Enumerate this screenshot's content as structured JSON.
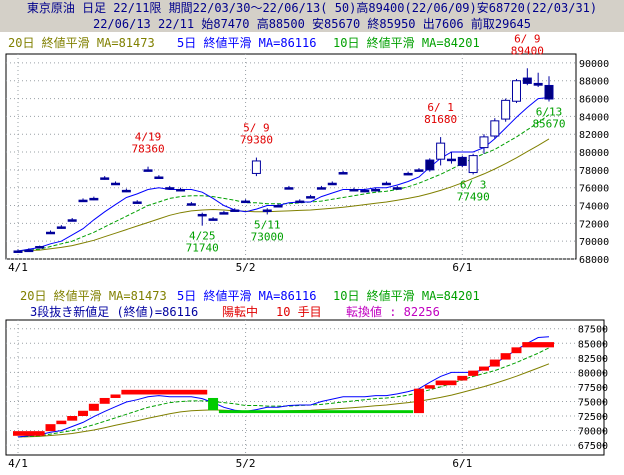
{
  "header": {
    "line1": "東京原油 日足 22/11限 期間22/03/30～22/06/13( 50)高89400(22/06/09)安68720(22/03/31)",
    "line2": "22/06/13 22/11 始87470 高88500 安85670 終85950 出7606 前取29645"
  },
  "legend": {
    "ma20": "20日 終値平滑 MA=81473",
    "ma5": "5日 終値平滑 MA=86116",
    "ma10": "10日 終値平滑 MA=84201"
  },
  "lower": {
    "line2_text": "3段抜き新値足 (終値)=86116",
    "state": "陽転中",
    "step": "10 手目",
    "turn": "転換値 : 82256"
  },
  "colors": {
    "bg": "#ffffff",
    "grid": "#9aa0a6",
    "up_candle": "#0000a0",
    "down_candle": "#000080",
    "ma20": "#808000",
    "ma5": "#0000ff",
    "ma10": "#00a000",
    "high_label": "#e00000",
    "low_label": "#00a000",
    "brick_up": "#ff0000",
    "brick_down": "#00cc00"
  },
  "chart_data": [
    {
      "type": "candlestick",
      "x_labels": [
        "4/1",
        "5/2",
        "6/1"
      ],
      "ylim": [
        68000,
        91000
      ],
      "y_ticks": [
        68000,
        70000,
        72000,
        74000,
        76000,
        78000,
        80000,
        82000,
        84000,
        86000,
        88000,
        90000
      ],
      "candles": [
        {
          "o": 68900,
          "h": 69100,
          "l": 68720,
          "c": 68900
        },
        {
          "o": 69000,
          "h": 69200,
          "l": 68800,
          "c": 69000
        },
        {
          "o": 69400,
          "h": 69500,
          "l": 69200,
          "c": 69400
        },
        {
          "o": 71000,
          "h": 71200,
          "l": 70800,
          "c": 71000
        },
        {
          "o": 71600,
          "h": 71800,
          "l": 71400,
          "c": 71600
        },
        {
          "o": 72400,
          "h": 72600,
          "l": 72200,
          "c": 72400
        },
        {
          "o": 74600,
          "h": 74800,
          "l": 74400,
          "c": 74600
        },
        {
          "o": 74800,
          "h": 75000,
          "l": 74600,
          "c": 74800
        },
        {
          "o": 77100,
          "h": 77300,
          "l": 76900,
          "c": 77100
        },
        {
          "o": 76500,
          "h": 76700,
          "l": 76300,
          "c": 76500
        },
        {
          "o": 75700,
          "h": 75900,
          "l": 75500,
          "c": 75700
        },
        {
          "o": 74400,
          "h": 74600,
          "l": 74200,
          "c": 74400
        },
        {
          "o": 78000,
          "h": 78360,
          "l": 77800,
          "c": 78000
        },
        {
          "o": 77200,
          "h": 77400,
          "l": 77000,
          "c": 77200
        },
        {
          "o": 76000,
          "h": 76200,
          "l": 75800,
          "c": 76000
        },
        {
          "o": 75800,
          "h": 76000,
          "l": 75600,
          "c": 75800
        },
        {
          "o": 74200,
          "h": 74400,
          "l": 74000,
          "c": 74200
        },
        {
          "o": 73000,
          "h": 73200,
          "l": 71740,
          "c": 73000
        },
        {
          "o": 72500,
          "h": 72700,
          "l": 72300,
          "c": 72500
        },
        {
          "o": 73200,
          "h": 73400,
          "l": 73000,
          "c": 73200
        },
        {
          "o": 73500,
          "h": 73700,
          "l": 73300,
          "c": 73500
        },
        {
          "o": 74500,
          "h": 74700,
          "l": 74300,
          "c": 74500
        },
        {
          "o": 77600,
          "h": 79380,
          "l": 77300,
          "c": 79000
        },
        {
          "o": 73500,
          "h": 73700,
          "l": 73000,
          "c": 73500
        },
        {
          "o": 74000,
          "h": 74200,
          "l": 73800,
          "c": 74000
        },
        {
          "o": 76000,
          "h": 76200,
          "l": 75800,
          "c": 76000
        },
        {
          "o": 74500,
          "h": 74700,
          "l": 74300,
          "c": 74500
        },
        {
          "o": 75000,
          "h": 75200,
          "l": 74800,
          "c": 75000
        },
        {
          "o": 76000,
          "h": 76200,
          "l": 75800,
          "c": 76000
        },
        {
          "o": 76500,
          "h": 76700,
          "l": 76300,
          "c": 76500
        },
        {
          "o": 77700,
          "h": 77900,
          "l": 77500,
          "c": 77700
        },
        {
          "o": 75800,
          "h": 76000,
          "l": 75600,
          "c": 75800
        },
        {
          "o": 75700,
          "h": 75900,
          "l": 75500,
          "c": 75700
        },
        {
          "o": 75800,
          "h": 76000,
          "l": 75600,
          "c": 75800
        },
        {
          "o": 76500,
          "h": 76700,
          "l": 76300,
          "c": 76500
        },
        {
          "o": 76000,
          "h": 76200,
          "l": 75800,
          "c": 76000
        },
        {
          "o": 77600,
          "h": 77800,
          "l": 77400,
          "c": 77600
        },
        {
          "o": 78000,
          "h": 78200,
          "l": 77800,
          "c": 78000
        },
        {
          "o": 79100,
          "h": 79300,
          "l": 77800,
          "c": 78000
        },
        {
          "o": 79200,
          "h": 81680,
          "l": 78500,
          "c": 81000
        },
        {
          "o": 79200,
          "h": 80000,
          "l": 78700,
          "c": 79100
        },
        {
          "o": 79400,
          "h": 79600,
          "l": 78300,
          "c": 78500
        },
        {
          "o": 77700,
          "h": 79800,
          "l": 77490,
          "c": 79600
        },
        {
          "o": 80500,
          "h": 82000,
          "l": 79800,
          "c": 81700
        },
        {
          "o": 81800,
          "h": 83800,
          "l": 81500,
          "c": 83500
        },
        {
          "o": 83700,
          "h": 86000,
          "l": 83400,
          "c": 85800
        },
        {
          "o": 85700,
          "h": 88200,
          "l": 85500,
          "c": 88000
        },
        {
          "o": 88300,
          "h": 89400,
          "l": 87500,
          "c": 87700
        },
        {
          "o": 87700,
          "h": 88900,
          "l": 87300,
          "c": 87500
        },
        {
          "o": 87470,
          "h": 88500,
          "l": 85670,
          "c": 85950
        }
      ],
      "ma": {
        "ma5": [
          68900,
          69100,
          69300,
          69700,
          70000,
          70700,
          71400,
          72400,
          73300,
          74100,
          74900,
          75300,
          75800,
          76000,
          75800,
          75800,
          75800,
          75500,
          74800,
          74000,
          73500,
          73300,
          73600,
          74000,
          74000,
          74300,
          74400,
          74400,
          75000,
          75400,
          75800,
          75800,
          75800,
          76000,
          76000,
          76300,
          76700,
          77200,
          78300,
          79300,
          80000,
          80000,
          80000,
          80500,
          81500,
          82700,
          83900,
          85000,
          86000,
          86116
        ],
        "ma10": [
          68900,
          69000,
          69100,
          69400,
          69700,
          70000,
          70500,
          71000,
          71600,
          72200,
          72800,
          73400,
          74000,
          74400,
          74800,
          75000,
          75100,
          75100,
          75000,
          74800,
          74600,
          74300,
          74300,
          74200,
          74200,
          74200,
          74300,
          74400,
          74500,
          74700,
          74900,
          75100,
          75300,
          75500,
          75600,
          75800,
          76100,
          76500,
          77000,
          77500,
          78100,
          78700,
          79300,
          79800,
          80300,
          81000,
          81700,
          82500,
          83300,
          84201
        ],
        "ma20": [
          68900,
          68950,
          69000,
          69150,
          69300,
          69500,
          69800,
          70100,
          70500,
          70900,
          71300,
          71700,
          72100,
          72500,
          72900,
          73200,
          73400,
          73500,
          73550,
          73500,
          73400,
          73350,
          73300,
          73300,
          73350,
          73400,
          73450,
          73500,
          73600,
          73700,
          73800,
          73950,
          74100,
          74250,
          74400,
          74600,
          74800,
          75050,
          75350,
          75700,
          76100,
          76550,
          77050,
          77550,
          78100,
          78700,
          79350,
          80050,
          80750,
          81473
        ]
      },
      "annotations": [
        {
          "idx": 12,
          "label": "4/19",
          "value": "78360",
          "kind": "high"
        },
        {
          "idx": 17,
          "label": "4/25",
          "value": "71740",
          "kind": "low"
        },
        {
          "idx": 22,
          "label": "5/ 9",
          "value": "79380",
          "kind": "high"
        },
        {
          "idx": 23,
          "label": "5/11",
          "value": "73000",
          "kind": "low"
        },
        {
          "idx": 39,
          "label": "6/ 1",
          "value": "81680",
          "kind": "high"
        },
        {
          "idx": 42,
          "label": "6/ 3",
          "value": "77490",
          "kind": "low"
        },
        {
          "idx": 47,
          "label": "6/ 9",
          "value": "89400",
          "kind": "high"
        },
        {
          "idx": 49,
          "label": "6/13",
          "value": "85670",
          "kind": "low"
        }
      ]
    },
    {
      "type": "new-price-bars",
      "x_labels": [
        "4/1",
        "5/2",
        "6/1"
      ],
      "ylim": [
        65800,
        89000
      ],
      "y_ticks": [
        67500,
        70000,
        72500,
        75000,
        77500,
        80000,
        82500,
        85000,
        87500
      ],
      "bricks": [
        {
          "from": 0,
          "to": 2,
          "lo": 69100,
          "hi": 69900,
          "dir": "up"
        },
        {
          "from": 3,
          "to": 3,
          "lo": 69900,
          "hi": 71100,
          "dir": "up"
        },
        {
          "from": 4,
          "to": 4,
          "lo": 71100,
          "hi": 71700,
          "dir": "up"
        },
        {
          "from": 5,
          "to": 5,
          "lo": 71700,
          "hi": 72500,
          "dir": "up"
        },
        {
          "from": 6,
          "to": 6,
          "lo": 72500,
          "hi": 73400,
          "dir": "up"
        },
        {
          "from": 7,
          "to": 7,
          "lo": 73400,
          "hi": 74600,
          "dir": "up"
        },
        {
          "from": 8,
          "to": 8,
          "lo": 74600,
          "hi": 75600,
          "dir": "up"
        },
        {
          "from": 9,
          "to": 9,
          "lo": 75600,
          "hi": 76200,
          "dir": "up"
        },
        {
          "from": 10,
          "to": 17,
          "lo": 76200,
          "hi": 77000,
          "dir": "up"
        },
        {
          "from": 18,
          "to": 18,
          "lo": 73500,
          "hi": 75600,
          "dir": "down"
        },
        {
          "from": 19,
          "to": 36,
          "lo": 73000,
          "hi": 73500,
          "dir": "down"
        },
        {
          "from": 37,
          "to": 37,
          "lo": 73000,
          "hi": 77200,
          "dir": "up"
        },
        {
          "from": 38,
          "to": 38,
          "lo": 77200,
          "hi": 77800,
          "dir": "up"
        },
        {
          "from": 39,
          "to": 40,
          "lo": 77800,
          "hi": 78600,
          "dir": "up"
        },
        {
          "from": 41,
          "to": 41,
          "lo": 78600,
          "hi": 79400,
          "dir": "up"
        },
        {
          "from": 42,
          "to": 42,
          "lo": 79400,
          "hi": 80300,
          "dir": "up"
        },
        {
          "from": 43,
          "to": 43,
          "lo": 80300,
          "hi": 81000,
          "dir": "up"
        },
        {
          "from": 44,
          "to": 44,
          "lo": 81000,
          "hi": 82200,
          "dir": "up"
        },
        {
          "from": 45,
          "to": 45,
          "lo": 82200,
          "hi": 83300,
          "dir": "up"
        },
        {
          "from": 46,
          "to": 46,
          "lo": 83300,
          "hi": 84300,
          "dir": "up"
        },
        {
          "from": 47,
          "to": 49,
          "lo": 84300,
          "hi": 85200,
          "dir": "up"
        }
      ]
    }
  ]
}
